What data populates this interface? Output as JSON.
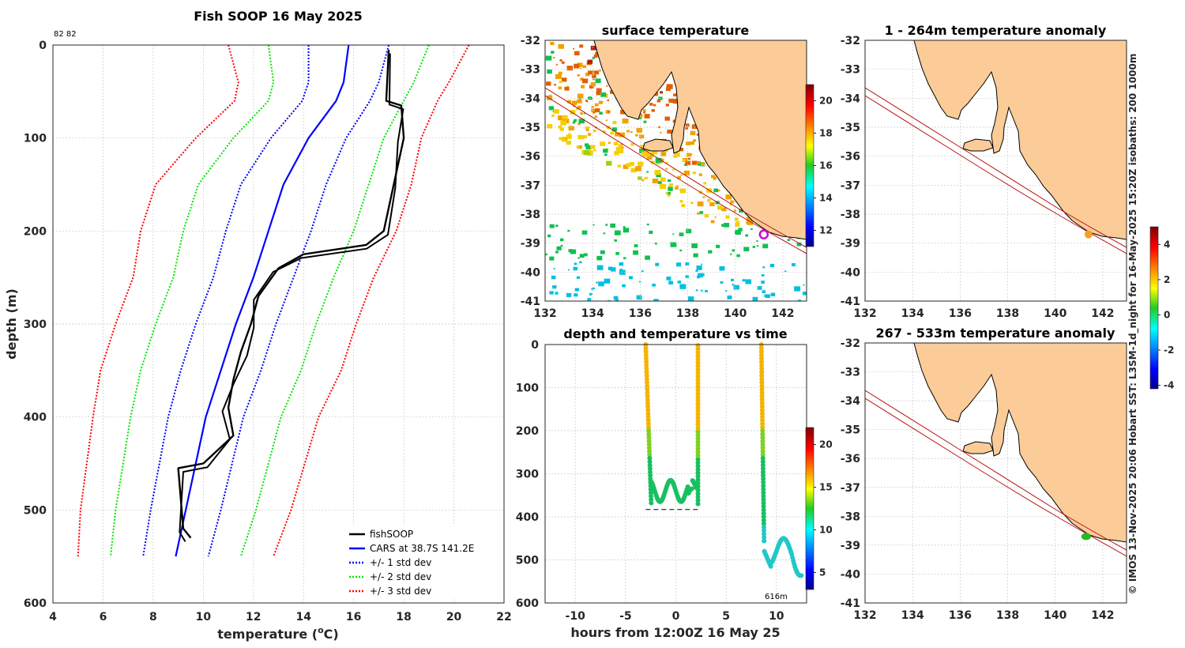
{
  "chart_data": [
    {
      "id": "profile",
      "type": "line",
      "title": "Fish SOOP 16 May 2025",
      "top_note": "82 82",
      "xlabel": "temperature (°C)",
      "xlabel_main": "temperature (",
      "xlabel_sup": "o",
      "xlabel_end": "C)",
      "ylabel": "depth (m)",
      "xlim": [
        4,
        22
      ],
      "ylim": [
        0,
        600
      ],
      "xticks": [
        4,
        6,
        8,
        10,
        12,
        14,
        16,
        18,
        20,
        22
      ],
      "yticks": [
        0,
        100,
        200,
        300,
        400,
        500,
        600
      ],
      "depths": [
        0,
        40,
        60,
        100,
        150,
        200,
        250,
        300,
        350,
        400,
        450,
        500,
        550
      ],
      "cars_mean": [
        15.8,
        15.6,
        15.3,
        14.2,
        13.2,
        12.6,
        12.0,
        11.3,
        10.7,
        10.1,
        9.7,
        9.3,
        8.9
      ],
      "std1": [
        1.6,
        1.4,
        1.35,
        1.5,
        1.7,
        1.7,
        1.6,
        1.6,
        1.6,
        1.5,
        1.45,
        1.4,
        1.3
      ],
      "fishsoop": [
        {
          "t": 17.4,
          "d": 5
        },
        {
          "t": 17.3,
          "d": 60
        },
        {
          "t": 17.9,
          "d": 65
        },
        {
          "t": 18.0,
          "d": 100
        },
        {
          "t": 17.6,
          "d": 150
        },
        {
          "t": 17.2,
          "d": 200
        },
        {
          "t": 16.5,
          "d": 215
        },
        {
          "t": 14.0,
          "d": 225
        },
        {
          "t": 13.0,
          "d": 240
        },
        {
          "t": 12.2,
          "d": 270
        },
        {
          "t": 11.9,
          "d": 300
        },
        {
          "t": 11.5,
          "d": 330
        },
        {
          "t": 11.2,
          "d": 360
        },
        {
          "t": 11.0,
          "d": 390
        },
        {
          "t": 11.2,
          "d": 420
        },
        {
          "t": 10.0,
          "d": 450
        },
        {
          "t": 9.0,
          "d": 455
        },
        {
          "t": 9.2,
          "d": 520
        },
        {
          "t": 9.5,
          "d": 530
        }
      ],
      "series": [
        {
          "name": "fishSOOP",
          "color": "#000000",
          "style": "solid"
        },
        {
          "name": "CARS at 38.7S 141.2E",
          "color": "#0000ff",
          "style": "solid"
        },
        {
          "name": "+/- 1 std dev",
          "color": "#0000ff",
          "style": "dotted"
        },
        {
          "name": "+/- 2 std dev",
          "color": "#00e600",
          "style": "dotted"
        },
        {
          "name": "+/- 3 std dev",
          "color": "#ff0000",
          "style": "dotted"
        }
      ],
      "legend": "bottom-right"
    },
    {
      "id": "surface-map",
      "type": "heatmap",
      "title": "surface temperature",
      "xlim": [
        132,
        143
      ],
      "ylim": [
        -41,
        -32
      ],
      "xticks": [
        132,
        134,
        136,
        138,
        140,
        142
      ],
      "yticks": [
        -32,
        -33,
        -34,
        -35,
        -36,
        -37,
        -38,
        -39,
        -40,
        -41
      ],
      "colorbar": {
        "range": [
          11,
          21
        ],
        "ticks": [
          12,
          14,
          16,
          18,
          20
        ]
      },
      "marker": {
        "lon": 141.2,
        "lat": -38.7,
        "color": "#d400d4"
      }
    },
    {
      "id": "depth-time",
      "type": "scatter",
      "title": "depth and temperature vs time",
      "xlabel": "hours from 12:00Z 16 May 25",
      "xlim": [
        -13,
        13
      ],
      "ylim": [
        0,
        600
      ],
      "xticks": [
        -10,
        -5,
        0,
        5,
        10
      ],
      "yticks": [
        0,
        100,
        200,
        300,
        400,
        500,
        600
      ],
      "annotation": "616m",
      "bottom_line_depth": 383,
      "colorbar": {
        "range": [
          3,
          22
        ],
        "ticks": [
          5,
          10,
          15,
          20
        ]
      }
    },
    {
      "id": "anomaly-1",
      "type": "heatmap",
      "title": "1 - 264m temperature anomaly",
      "xlim": [
        132,
        143
      ],
      "ylim": [
        -41,
        -32
      ],
      "xticks": [
        132,
        134,
        136,
        138,
        140,
        142
      ],
      "yticks": [
        -32,
        -33,
        -34,
        -35,
        -36,
        -37,
        -38,
        -39,
        -40,
        -41
      ],
      "marker": {
        "lon": 141.4,
        "lat": -38.7,
        "color": "#f5a020"
      }
    },
    {
      "id": "anomaly-2",
      "type": "heatmap",
      "title": "267 - 533m temperature anomaly",
      "xlim": [
        132,
        143
      ],
      "ylim": [
        -41,
        -32
      ],
      "xticks": [
        132,
        134,
        136,
        138,
        140,
        142
      ],
      "yticks": [
        -32,
        -33,
        -34,
        -35,
        -36,
        -37,
        -38,
        -39,
        -40,
        -41
      ],
      "marker": {
        "lon": 141.3,
        "lat": -38.7,
        "color": "#22bb22"
      },
      "colorbar": {
        "range": [
          -4.2,
          5
        ],
        "ticks": [
          -4,
          -2,
          0,
          2,
          4
        ]
      }
    }
  ],
  "side_note": "© IMOS 13-Nov-2025 20:06 Hobart SST: L3SM-1d_night for 16-May-2025 15:20Z isobaths: 200  1000m"
}
